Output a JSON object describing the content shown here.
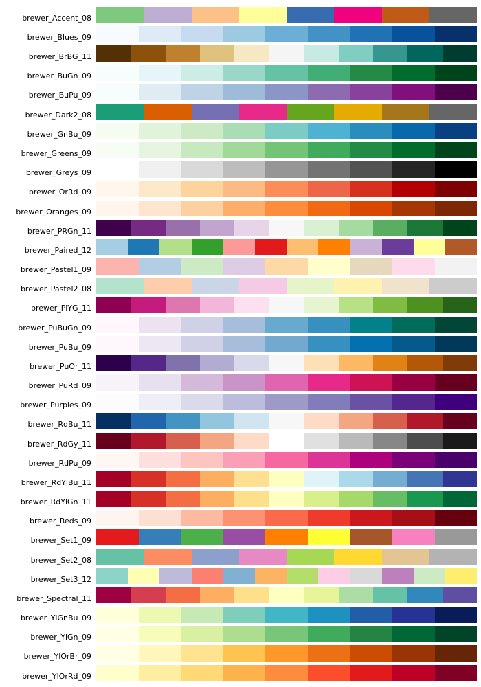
{
  "chart_data": {
    "type": "table",
    "title": "",
    "description": "ColorBrewer palette swatch chart: one row per palette, right-aligned label on the left, contiguous equal-width color swatches on the right",
    "layout_hints": {
      "label_align": "right",
      "swatches": "equal-width contiguous blocks",
      "rows": 35
    },
    "palettes": [
      {
        "name": "brewer_Accent_08",
        "colors": [
          "#7fc97f",
          "#beaed4",
          "#fdc086",
          "#ffff99",
          "#386cb0",
          "#f0027f",
          "#bf5b17",
          "#666666"
        ]
      },
      {
        "name": "brewer_Blues_09",
        "colors": [
          "#f7fbff",
          "#deebf7",
          "#c6dbef",
          "#9ecae1",
          "#6baed6",
          "#4292c6",
          "#2171b5",
          "#08519c",
          "#08306b"
        ]
      },
      {
        "name": "brewer_BrBG_11",
        "colors": [
          "#543005",
          "#8c510a",
          "#bf812d",
          "#dfc27d",
          "#f6e8c3",
          "#f5f5f5",
          "#c7eae5",
          "#80cdc1",
          "#35978f",
          "#01665e",
          "#003c30"
        ]
      },
      {
        "name": "brewer_BuGn_09",
        "colors": [
          "#f7fcfd",
          "#e5f5f9",
          "#ccece6",
          "#99d8c9",
          "#66c2a4",
          "#41ae76",
          "#238b45",
          "#006d2c",
          "#00441b"
        ]
      },
      {
        "name": "brewer_BuPu_09",
        "colors": [
          "#f7fcfd",
          "#e0ecf4",
          "#bfd3e6",
          "#9ebcda",
          "#8c96c6",
          "#8c6bb1",
          "#88419d",
          "#810f7c",
          "#4d004b"
        ]
      },
      {
        "name": "brewer_Dark2_08",
        "colors": [
          "#1b9e77",
          "#d95f02",
          "#7570b3",
          "#e7298a",
          "#66a61e",
          "#e6ab02",
          "#a6761d",
          "#666666"
        ]
      },
      {
        "name": "brewer_GnBu_09",
        "colors": [
          "#f7fcf0",
          "#e0f3db",
          "#ccebc5",
          "#a8ddb5",
          "#7bccc4",
          "#4eb3d3",
          "#2b8cbe",
          "#0868ac",
          "#084081"
        ]
      },
      {
        "name": "brewer_Greens_09",
        "colors": [
          "#f7fcf5",
          "#e5f5e0",
          "#c7e9c0",
          "#a1d99b",
          "#74c476",
          "#41ab5d",
          "#238b45",
          "#006d2c",
          "#00441b"
        ]
      },
      {
        "name": "brewer_Greys_09",
        "colors": [
          "#ffffff",
          "#f0f0f0",
          "#d9d9d9",
          "#bdbdbd",
          "#969696",
          "#737373",
          "#525252",
          "#252525",
          "#000000"
        ]
      },
      {
        "name": "brewer_OrRd_09",
        "colors": [
          "#fff7ec",
          "#fee8c8",
          "#fdd49e",
          "#fdbb84",
          "#fc8d59",
          "#ef6548",
          "#d7301f",
          "#b30000",
          "#7f0000"
        ]
      },
      {
        "name": "brewer_Oranges_09",
        "colors": [
          "#fff5eb",
          "#fee6ce",
          "#fdd0a2",
          "#fdae6b",
          "#fd8d3c",
          "#f16913",
          "#d94801",
          "#a63603",
          "#7f2704"
        ]
      },
      {
        "name": "brewer_PRGn_11",
        "colors": [
          "#40004b",
          "#762a83",
          "#9970ab",
          "#c2a5cf",
          "#e7d4e8",
          "#f7f7f7",
          "#d9f0d3",
          "#a6dba0",
          "#5aae61",
          "#1b7837",
          "#00441b"
        ]
      },
      {
        "name": "brewer_Paired_12",
        "colors": [
          "#a6cee3",
          "#1f78b4",
          "#b2df8a",
          "#33a02c",
          "#fb9a99",
          "#e31a1c",
          "#fdbf6f",
          "#ff7f00",
          "#cab2d6",
          "#6a3d9a",
          "#ffff99",
          "#b15928"
        ]
      },
      {
        "name": "brewer_Pastel1_09",
        "colors": [
          "#fbb4ae",
          "#b3cde3",
          "#ccebc5",
          "#decbe4",
          "#fed9a6",
          "#ffffcc",
          "#e5d8bd",
          "#fddaec",
          "#f2f2f2"
        ]
      },
      {
        "name": "brewer_Pastel2_08",
        "colors": [
          "#b3e2cd",
          "#fdcdac",
          "#cbd5e8",
          "#f4cae4",
          "#e6f5c9",
          "#fff2ae",
          "#f1e2cc",
          "#cccccc"
        ]
      },
      {
        "name": "brewer_PiYG_11",
        "colors": [
          "#8e0152",
          "#c51b7d",
          "#de77ae",
          "#f1b6da",
          "#fde0ef",
          "#f7f7f7",
          "#e6f5d0",
          "#b8e186",
          "#7fbc41",
          "#4d9221",
          "#276419"
        ]
      },
      {
        "name": "brewer_PuBuGn_09",
        "colors": [
          "#fff7fb",
          "#ece2f0",
          "#d0d1e6",
          "#a6bddb",
          "#67a9cf",
          "#3690c0",
          "#02818a",
          "#016c59",
          "#014636"
        ]
      },
      {
        "name": "brewer_PuBu_09",
        "colors": [
          "#fff7fb",
          "#ece7f2",
          "#d0d1e6",
          "#a6bddb",
          "#74a9cf",
          "#3690c0",
          "#0570b0",
          "#045a8d",
          "#023858"
        ]
      },
      {
        "name": "brewer_PuOr_11",
        "colors": [
          "#2d004b",
          "#542788",
          "#8073ac",
          "#b2abd2",
          "#d8daeb",
          "#f7f7f7",
          "#fee0b6",
          "#fdb863",
          "#e08214",
          "#b35806",
          "#7f3b08"
        ]
      },
      {
        "name": "brewer_PuRd_09",
        "colors": [
          "#f7f4f9",
          "#e7e1ef",
          "#d4b9da",
          "#c994c7",
          "#df65b0",
          "#e7298a",
          "#ce1256",
          "#980043",
          "#67001f"
        ]
      },
      {
        "name": "brewer_Purples_09",
        "colors": [
          "#fcfbfd",
          "#efedf5",
          "#dadaeb",
          "#bcbddc",
          "#9e9ac8",
          "#807dba",
          "#6a51a3",
          "#54278f",
          "#3f007d"
        ]
      },
      {
        "name": "brewer_RdBu_11",
        "colors": [
          "#053061",
          "#2166ac",
          "#4393c3",
          "#92c5de",
          "#d1e5f0",
          "#f7f7f7",
          "#fddbc7",
          "#f4a582",
          "#d6604d",
          "#b2182b",
          "#67001f"
        ]
      },
      {
        "name": "brewer_RdGy_11",
        "colors": [
          "#67001f",
          "#b2182b",
          "#d6604d",
          "#f4a582",
          "#fddbc7",
          "#ffffff",
          "#e0e0e0",
          "#bababa",
          "#878787",
          "#4d4d4d",
          "#1a1a1a"
        ]
      },
      {
        "name": "brewer_RdPu_09",
        "colors": [
          "#fff7f3",
          "#fde0dd",
          "#fcc5c0",
          "#fa9fb5",
          "#f768a1",
          "#dd3497",
          "#ae017e",
          "#7a0177",
          "#49006a"
        ]
      },
      {
        "name": "brewer_RdYlBu_11",
        "colors": [
          "#a50026",
          "#d73027",
          "#f46d43",
          "#fdae61",
          "#fee090",
          "#ffffbf",
          "#e0f3f8",
          "#abd9e9",
          "#74add1",
          "#4575b4",
          "#313695"
        ]
      },
      {
        "name": "brewer_RdYlGn_11",
        "colors": [
          "#a50026",
          "#d73027",
          "#f46d43",
          "#fdae61",
          "#fee08b",
          "#ffffbf",
          "#d9ef8b",
          "#a6d96a",
          "#66bd63",
          "#1a9850",
          "#006837"
        ]
      },
      {
        "name": "brewer_Reds_09",
        "colors": [
          "#fff5f0",
          "#fee0d2",
          "#fcbba1",
          "#fc9272",
          "#fb6a4a",
          "#ef3b2c",
          "#cb181d",
          "#a50f15",
          "#67000d"
        ]
      },
      {
        "name": "brewer_Set1_09",
        "colors": [
          "#e41a1c",
          "#377eb8",
          "#4daf4a",
          "#984ea3",
          "#ff7f00",
          "#ffff33",
          "#a65628",
          "#f781bf",
          "#999999"
        ]
      },
      {
        "name": "brewer_Set2_08",
        "colors": [
          "#66c2a5",
          "#fc8d62",
          "#8da0cb",
          "#e78ac3",
          "#a6d854",
          "#ffd92f",
          "#e5c494",
          "#b3b3b3"
        ]
      },
      {
        "name": "brewer_Set3_12",
        "colors": [
          "#8dd3c7",
          "#ffffb3",
          "#bebada",
          "#fb8072",
          "#80b1d3",
          "#fdb462",
          "#b3de69",
          "#fccde5",
          "#d9d9d9",
          "#bc80bd",
          "#ccebc5",
          "#ffed6f"
        ]
      },
      {
        "name": "brewer_Spectral_11",
        "colors": [
          "#9e0142",
          "#d53e4f",
          "#f46d43",
          "#fdae61",
          "#fee08b",
          "#ffffbf",
          "#e6f598",
          "#abdda4",
          "#66c2a5",
          "#3288bd",
          "#5e4fa2"
        ]
      },
      {
        "name": "brewer_YlGnBu_09",
        "colors": [
          "#ffffd9",
          "#edf8b1",
          "#c7e9b4",
          "#7fcdbb",
          "#41b6c4",
          "#1d91c0",
          "#225ea8",
          "#253494",
          "#081d58"
        ]
      },
      {
        "name": "brewer_YlGn_09",
        "colors": [
          "#ffffe5",
          "#f7fcb9",
          "#d9f0a3",
          "#addd8e",
          "#78c679",
          "#41ab5d",
          "#238443",
          "#006837",
          "#004529"
        ]
      },
      {
        "name": "brewer_YlOrBr_09",
        "colors": [
          "#ffffe5",
          "#fff7bc",
          "#fee391",
          "#fec44f",
          "#fe9929",
          "#ec7014",
          "#cc4c02",
          "#993404",
          "#662506"
        ]
      },
      {
        "name": "brewer_YlOrRd_09",
        "colors": [
          "#ffffcc",
          "#ffeda0",
          "#fed976",
          "#feb24c",
          "#fd8d3c",
          "#fc4e2a",
          "#e31a1c",
          "#bd0026",
          "#800026"
        ]
      }
    ]
  }
}
